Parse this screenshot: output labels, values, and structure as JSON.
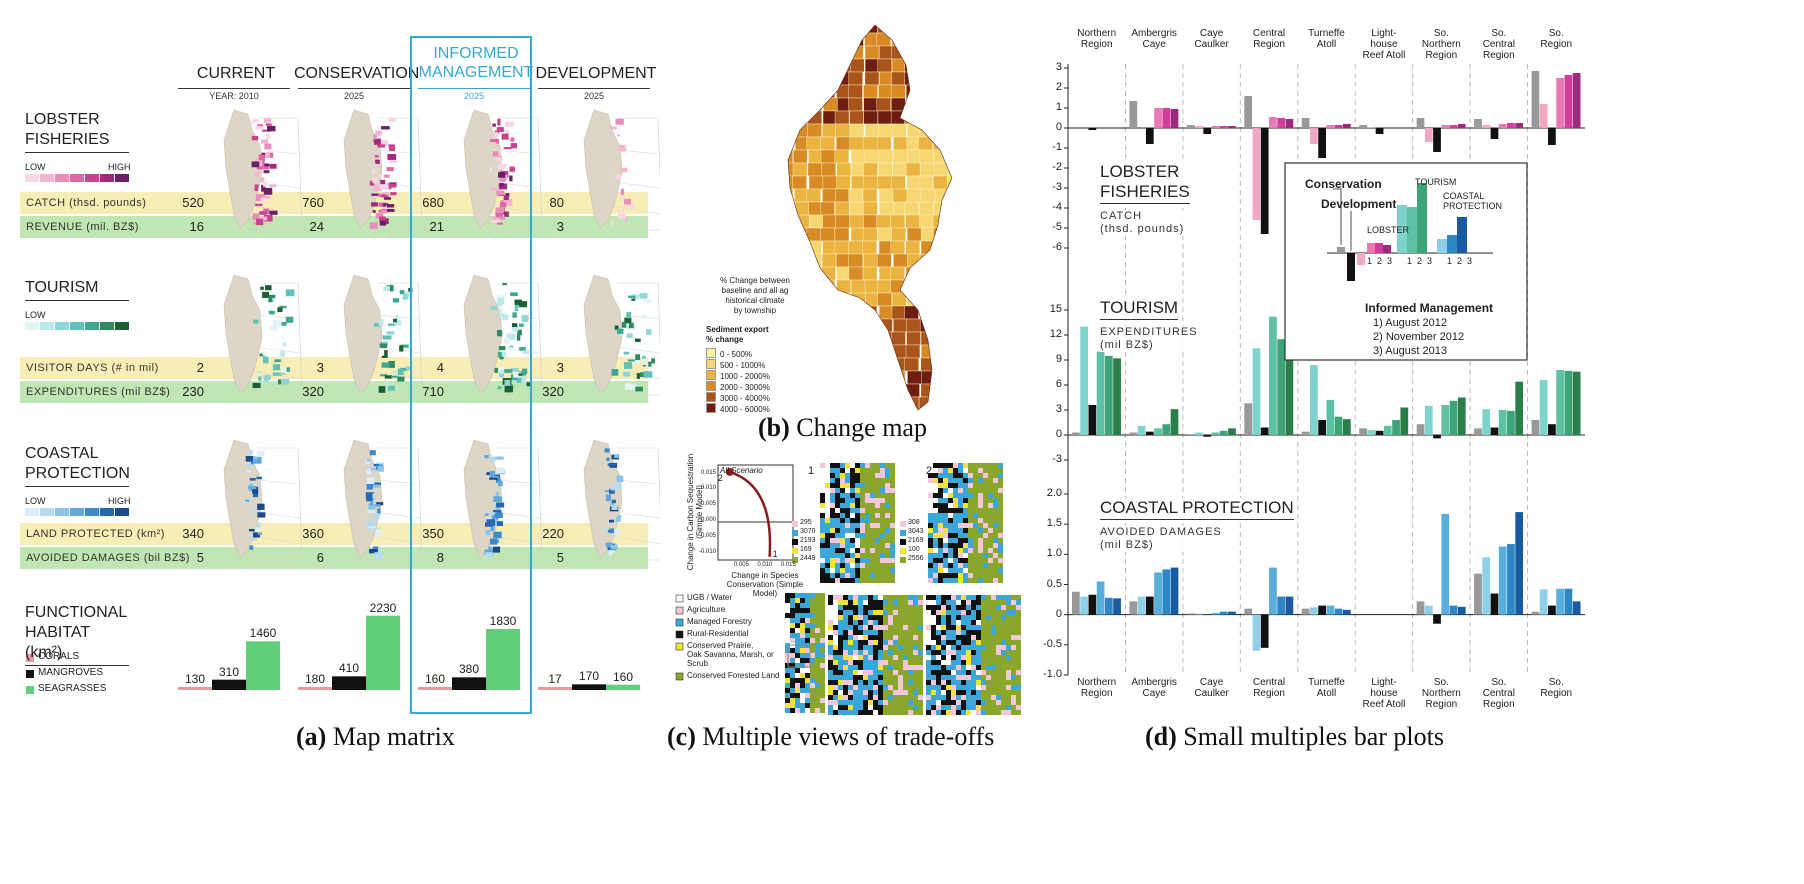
{
  "panel_a": {
    "caption_letter": "(a)",
    "caption_text": "Map matrix",
    "columns": [
      {
        "title": "CURRENT",
        "subtitle": "YEAR: 2010"
      },
      {
        "title": "CONSERVATION",
        "subtitle": "2025"
      },
      {
        "title": "INFORMED\nMANAGEMENT",
        "subtitle": "2025"
      },
      {
        "title": "DEVELOPMENT",
        "subtitle": "2025"
      }
    ],
    "highlight_color": "#36a9d0",
    "sections": [
      {
        "title": "LOBSTER\nFISHERIES",
        "legend_low": "LOW",
        "legend_high": "HIGH",
        "ramp": [
          "#f7d7e6",
          "#f2b5d2",
          "#ea8dbb",
          "#e066a6",
          "#c9418f",
          "#9f2b7d",
          "#6b1f6b"
        ],
        "rows": [
          {
            "label": "CATCH (thsd. pounds)",
            "values": [
              "520",
              "760",
              "680",
              "80"
            ],
            "band": "#f8eeb5"
          },
          {
            "label": "REVENUE (mil. BZ$)",
            "values": [
              "16",
              "24",
              "21",
              "3"
            ],
            "band": "#bfe6b3"
          }
        ]
      },
      {
        "title": "TOURISM",
        "legend_low": "LOW",
        "legend_high": "",
        "ramp": [
          "#e2f4f6",
          "#bfe8ea",
          "#8fd6d5",
          "#5fc1b7",
          "#3ea98f",
          "#2f8a5f",
          "#1e5e35"
        ],
        "rows": [
          {
            "label": "VISITOR DAYS (# in mil)",
            "values": [
              "2",
              "3",
              "4",
              "3"
            ],
            "band": "#f8eeb5"
          },
          {
            "label": "EXPENDITURES (mil BZ$)",
            "values": [
              "230",
              "320",
              "710",
              "320"
            ],
            "band": "#bfe6b3"
          }
        ]
      },
      {
        "title": "COASTAL\nPROTECTION",
        "legend_low": "LOW",
        "legend_high": "HIGH",
        "ramp": [
          "#dceef9",
          "#b7dcf2",
          "#8cc5ea",
          "#5fa9dd",
          "#3c8acb",
          "#2468b0",
          "#1a4a8c"
        ],
        "rows": [
          {
            "label": "LAND PROTECTED (km²)",
            "values": [
              "340",
              "360",
              "350",
              "220"
            ],
            "band": "#f8eeb5"
          },
          {
            "label": "AVOIDED DAMAGES (bil BZ$)",
            "values": [
              "5",
              "6",
              "8",
              "5"
            ],
            "band": "#bfe6b3"
          }
        ]
      }
    ],
    "habitat": {
      "title": "FUNCTIONAL\nHABITAT (km²)",
      "legend": [
        {
          "name": "CORALS",
          "color": "#e89a9a"
        },
        {
          "name": "MANGROVES",
          "color": "#111111"
        },
        {
          "name": "SEAGRASSES",
          "color": "#5fcf7a"
        }
      ],
      "values": [
        [
          130,
          310,
          1460
        ],
        [
          180,
          410,
          2230
        ],
        [
          160,
          380,
          1830
        ],
        [
          17,
          170,
          160
        ]
      ],
      "labels": [
        [
          "130",
          "310",
          "1460"
        ],
        [
          "180",
          "410",
          "2230"
        ],
        [
          "160",
          "380",
          "1830"
        ],
        [
          "17",
          "170",
          "160"
        ]
      ]
    }
  },
  "panel_b": {
    "caption_letter": "(b)",
    "caption_text": "Change map",
    "legend_intro": "% Change between\nbaseline and all ag\nhistorical climate\nby township",
    "legend_title": "Sediment export\n% change",
    "legend": [
      {
        "label": "0 - 500%",
        "color": "#fbf0a0"
      },
      {
        "label": "500 - 1000%",
        "color": "#f6d771"
      },
      {
        "label": "1000 - 2000%",
        "color": "#ebb440"
      },
      {
        "label": "2000 - 3000%",
        "color": "#d88a25"
      },
      {
        "label": "3000 - 4000%",
        "color": "#a9541a"
      },
      {
        "label": "4000 - 6000%",
        "color": "#6e1e10"
      }
    ]
  },
  "panel_c": {
    "caption_letter": "(c)",
    "caption_text": "Multiple views of trade-offs",
    "scatter": {
      "title": "All Scenario",
      "ylabel": "Change in Carbon Sequestration\n(Simple Model)",
      "xlabel": "Change in Species\nConservation (Simple Model)",
      "yticks": [
        "0.015",
        "0.010",
        "0.005",
        "0.000",
        "-0.005",
        "-0.010"
      ],
      "xticks": [
        "0.005",
        "0.010",
        "0.015"
      ],
      "point_labels": [
        "2",
        "1"
      ]
    },
    "map1": {
      "label": "1",
      "counts": [
        "295",
        "3070",
        "2193",
        "169",
        "2449"
      ]
    },
    "map2": {
      "label": "2",
      "counts": [
        "308",
        "3043",
        "2169",
        "100",
        "2556"
      ]
    },
    "legend": [
      {
        "label": "UGB / Water",
        "color": "#ffffff"
      },
      {
        "label": "Agriculture",
        "color": "#f3c6d9"
      },
      {
        "label": "Managed Forestry",
        "color": "#3aa7d8"
      },
      {
        "label": "Rural-Residential",
        "color": "#111111"
      },
      {
        "label": "Conserved Prairie,\nOak Savanna, Marsh, or\nScrub",
        "color": "#f2e23a"
      },
      {
        "label": "Conserved Forested Land",
        "color": "#8aa72b"
      }
    ]
  },
  "panel_d": {
    "caption_letter": "(d)",
    "caption_text": "Small multiples bar plots",
    "regions": [
      "Northern\nRegion",
      "Ambergris\nCaye",
      "Caye\nCaulker",
      "Central\nRegion",
      "Turneffe\nAtoll",
      "Light-\nhouse\nReef Atoll",
      "So.\nNorthern\nRegion",
      "So.\nCentral\nRegion",
      "So.\nRegion"
    ],
    "series_order": [
      "Current",
      "Conservation",
      "Development",
      "Informed Mgmt 1",
      "Informed Mgmt 2",
      "Informed Mgmt 3"
    ],
    "lobster": {
      "title": "LOBSTER\nFISHERIES",
      "subtitle": "CATCH\n(thsd. pounds)",
      "yticks": [
        "3",
        "2",
        "1",
        "0",
        "-1",
        "-2",
        "-3",
        "-4",
        "-5",
        "-6"
      ],
      "ylim": [
        -6,
        3
      ],
      "colors": [
        "#999999",
        "#f2a7c4",
        "#111111",
        "#e879b5",
        "#cf3e9a",
        "#9e2a7e"
      ],
      "values": [
        [
          0,
          0,
          -0.1,
          0,
          0,
          0
        ],
        [
          1.35,
          0,
          -0.8,
          1,
          1,
          0.95
        ],
        [
          0.15,
          0.1,
          -0.3,
          0.1,
          0.1,
          0.1
        ],
        [
          1.6,
          -4.6,
          -5.3,
          0.55,
          0.5,
          0.45
        ],
        [
          0.5,
          -0.8,
          -1.5,
          0.15,
          0.15,
          0.2
        ],
        [
          0.15,
          0.05,
          -0.3,
          0,
          0,
          0
        ],
        [
          0.5,
          -0.7,
          -1.2,
          0.15,
          0.15,
          0.2
        ],
        [
          0.45,
          0.15,
          -0.55,
          0.2,
          0.25,
          0.25
        ],
        [
          2.85,
          1.2,
          -0.85,
          2.5,
          2.65,
          2.75
        ]
      ]
    },
    "tourism": {
      "title": "TOURISM",
      "subtitle": "EXPENDITURES\n(mil BZ$)",
      "yticks": [
        "15",
        "12",
        "9",
        "6",
        "3",
        "0",
        "-3"
      ],
      "ylim": [
        -3,
        15
      ],
      "colors": [
        "#999999",
        "#7fd3cd",
        "#111111",
        "#5fc1a3",
        "#3ea477",
        "#2a7f48"
      ],
      "values": [
        [
          0.3,
          13,
          3.6,
          10,
          9.5,
          9.2
        ],
        [
          0.3,
          1.1,
          0.4,
          0.8,
          1.3,
          3.1
        ],
        [
          0.1,
          0.3,
          -0.2,
          0.3,
          0.5,
          0.8
        ],
        [
          3.8,
          10.4,
          0.9,
          14.2,
          11.5,
          11.3
        ],
        [
          0.4,
          8.4,
          1.8,
          4.2,
          2.2,
          1.9
        ],
        [
          0.8,
          0.6,
          0.5,
          1.1,
          1.8,
          3.3
        ],
        [
          1.3,
          3.5,
          -0.4,
          3.6,
          4.1,
          4.5
        ],
        [
          0.8,
          3.1,
          0.9,
          3.0,
          2.9,
          6.4
        ],
        [
          1.8,
          6.6,
          1.3,
          7.8,
          7.7,
          7.6
        ]
      ]
    },
    "coastal": {
      "title": "COASTAL PROTECTION",
      "subtitle": "AVOIDED DAMAGES\n(mil BZ$)",
      "yticks": [
        "2.0",
        "1.5",
        "1.0",
        "0.5",
        "0",
        "-0.5",
        "-1.0"
      ],
      "ylim": [
        -1,
        2
      ],
      "colors": [
        "#999999",
        "#8fd0e8",
        "#111111",
        "#5aaedc",
        "#2f86c5",
        "#1a5aa0"
      ],
      "values": [
        [
          0.38,
          0.3,
          0.33,
          0.55,
          0.28,
          0.27
        ],
        [
          0.22,
          0.3,
          0.3,
          0.7,
          0.75,
          0.78
        ],
        [
          0.02,
          0.02,
          0,
          0.03,
          0.05,
          0.05
        ],
        [
          0.1,
          -0.6,
          -0.55,
          0.78,
          0.3,
          0.3
        ],
        [
          0.1,
          0.12,
          0.15,
          0.15,
          0.1,
          0.08
        ],
        [
          0,
          0,
          0,
          0,
          0,
          0
        ],
        [
          0.22,
          0.15,
          -0.15,
          1.67,
          0.15,
          0.13
        ],
        [
          0.68,
          0.95,
          0.35,
          1.13,
          1.17,
          1.7
        ],
        [
          0.05,
          0.42,
          0.15,
          0.43,
          0.43,
          0.22
        ]
      ]
    },
    "inset": {
      "labels": {
        "conservation": "Conservation",
        "development": "Development",
        "lobster": "LOBSTER",
        "tourism": "TOURISM",
        "coastal": "COASTAL\nPROTECTION",
        "informed": "Informed Management"
      },
      "ticks": [
        "1",
        "2",
        "3"
      ],
      "dates": [
        "1) August 2012",
        "2) November 2012",
        "3) August 2013"
      ]
    }
  }
}
